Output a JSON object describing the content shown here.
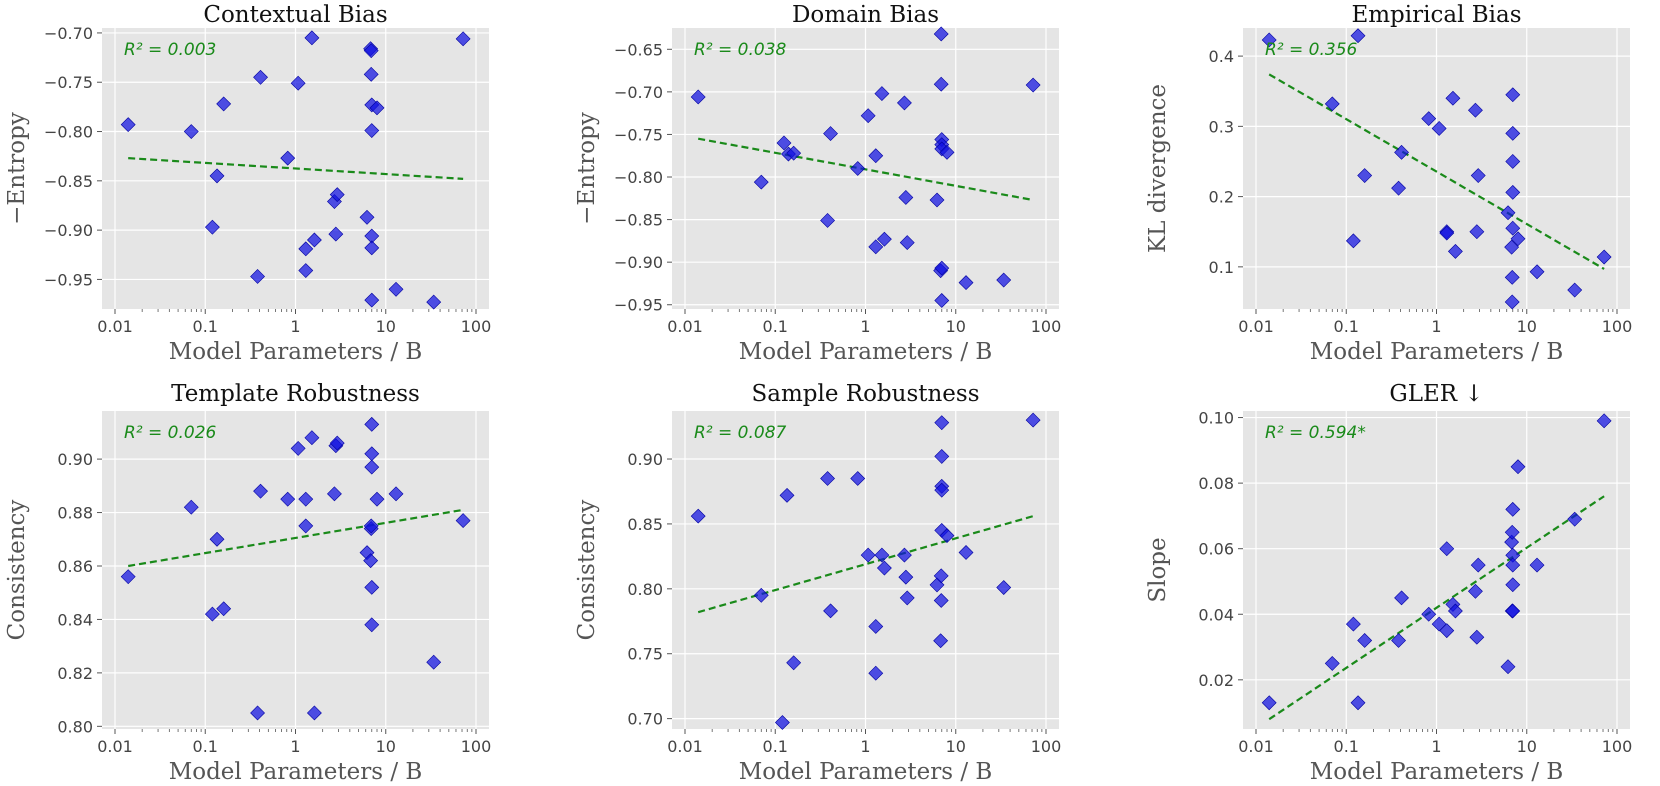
{
  "figure": {
    "x_ticks": [
      "0.01",
      "0.1",
      "1",
      "10",
      "100"
    ],
    "x_tick_values": [
      0.01,
      0.1,
      1,
      10,
      100
    ],
    "colors": {
      "points": "#1010e0",
      "fit": "#1a8a1a",
      "panel_bg": "#e5e5e5",
      "grid": "#ffffff"
    }
  },
  "chart_data": [
    {
      "type": "scatter",
      "title": "Contextual Bias",
      "xlabel": "Model Parameters / B",
      "ylabel": "−Entropy",
      "x_scale": "log",
      "xlim": [
        0.01,
        100
      ],
      "ylim": [
        -0.98,
        -0.695
      ],
      "y_ticks": [
        -0.95,
        -0.9,
        -0.85,
        -0.8,
        -0.75,
        -0.7
      ],
      "y_tick_labels": [
        "−0.95",
        "−0.90",
        "−0.85",
        "−0.80",
        "−0.75",
        "−0.70"
      ],
      "r2_label": "R² = 0.003",
      "fit_line": [
        [
          0.014,
          -0.827
        ],
        [
          72,
          -0.848
        ]
      ],
      "points": [
        [
          0.014,
          -0.793
        ],
        [
          0.07,
          -0.8
        ],
        [
          0.12,
          -0.897
        ],
        [
          0.135,
          -0.845
        ],
        [
          0.16,
          -0.772
        ],
        [
          0.38,
          -0.947
        ],
        [
          0.41,
          -0.745
        ],
        [
          0.82,
          -0.827
        ],
        [
          1.07,
          -0.751
        ],
        [
          1.3,
          -0.919
        ],
        [
          1.3,
          -0.941
        ],
        [
          1.52,
          -0.705
        ],
        [
          1.62,
          -0.91
        ],
        [
          2.7,
          -0.871
        ],
        [
          2.8,
          -0.904
        ],
        [
          2.9,
          -0.864
        ],
        [
          6.2,
          -0.887
        ],
        [
          6.8,
          -0.716
        ],
        [
          6.9,
          -0.718
        ],
        [
          6.9,
          -0.742
        ],
        [
          7.0,
          -0.773
        ],
        [
          7.0,
          -0.799
        ],
        [
          7.0,
          -0.906
        ],
        [
          7.0,
          -0.918
        ],
        [
          7.0,
          -0.971
        ],
        [
          8.0,
          -0.776
        ],
        [
          13,
          -0.96
        ],
        [
          34,
          -0.973
        ],
        [
          72,
          -0.706
        ]
      ]
    },
    {
      "type": "scatter",
      "title": "Domain Bias",
      "xlabel": "Model Parameters / B",
      "ylabel": "−Entropy",
      "x_scale": "log",
      "xlim": [
        0.01,
        100
      ],
      "ylim": [
        -0.955,
        -0.625
      ],
      "y_ticks": [
        -0.95,
        -0.9,
        -0.85,
        -0.8,
        -0.75,
        -0.7,
        -0.65
      ],
      "y_tick_labels": [
        "−0.95",
        "−0.90",
        "−0.85",
        "−0.80",
        "−0.75",
        "−0.70",
        "−0.65"
      ],
      "r2_label": "R² = 0.038",
      "fit_line": [
        [
          0.014,
          -0.755
        ],
        [
          72,
          -0.827
        ]
      ],
      "points": [
        [
          0.014,
          -0.706
        ],
        [
          0.07,
          -0.806
        ],
        [
          0.125,
          -0.76
        ],
        [
          0.14,
          -0.773
        ],
        [
          0.16,
          -0.772
        ],
        [
          0.38,
          -0.851
        ],
        [
          0.41,
          -0.749
        ],
        [
          0.82,
          -0.79
        ],
        [
          1.07,
          -0.728
        ],
        [
          1.3,
          -0.882
        ],
        [
          1.3,
          -0.775
        ],
        [
          1.52,
          -0.702
        ],
        [
          1.62,
          -0.873
        ],
        [
          2.7,
          -0.713
        ],
        [
          2.8,
          -0.824
        ],
        [
          2.9,
          -0.877
        ],
        [
          6.2,
          -0.827
        ],
        [
          6.8,
          -0.91
        ],
        [
          6.9,
          -0.632
        ],
        [
          6.9,
          -0.691
        ],
        [
          7.0,
          -0.756
        ],
        [
          7.0,
          -0.762
        ],
        [
          7.0,
          -0.767
        ],
        [
          7.0,
          -0.907
        ],
        [
          7.0,
          -0.945
        ],
        [
          8.0,
          -0.771
        ],
        [
          13,
          -0.924
        ],
        [
          34,
          -0.921
        ],
        [
          72,
          -0.692
        ]
      ]
    },
    {
      "type": "scatter",
      "title": "Empirical Bias",
      "xlabel": "Model Parameters / B",
      "ylabel": "KL divergence",
      "x_scale": "log",
      "xlim": [
        0.01,
        100
      ],
      "ylim": [
        0.04,
        0.44
      ],
      "y_ticks": [
        0.1,
        0.2,
        0.3,
        0.4
      ],
      "y_tick_labels": [
        "0.1",
        "0.2",
        "0.3",
        "0.4"
      ],
      "r2_label": "R² = 0.356",
      "fit_line": [
        [
          0.014,
          0.374
        ],
        [
          72,
          0.097
        ]
      ],
      "points": [
        [
          0.014,
          0.423
        ],
        [
          0.07,
          0.332
        ],
        [
          0.12,
          0.137
        ],
        [
          0.135,
          0.429
        ],
        [
          0.16,
          0.23
        ],
        [
          0.38,
          0.212
        ],
        [
          0.41,
          0.263
        ],
        [
          0.82,
          0.311
        ],
        [
          1.07,
          0.297
        ],
        [
          1.3,
          0.15
        ],
        [
          1.3,
          0.148
        ],
        [
          1.52,
          0.34
        ],
        [
          1.62,
          0.122
        ],
        [
          2.7,
          0.323
        ],
        [
          2.8,
          0.15
        ],
        [
          2.9,
          0.23
        ],
        [
          6.2,
          0.177
        ],
        [
          6.8,
          0.128
        ],
        [
          6.9,
          0.085
        ],
        [
          6.9,
          0.05
        ],
        [
          7.0,
          0.345
        ],
        [
          7.0,
          0.29
        ],
        [
          7.0,
          0.25
        ],
        [
          7.0,
          0.206
        ],
        [
          7.0,
          0.155
        ],
        [
          8.0,
          0.14
        ],
        [
          13,
          0.093
        ],
        [
          34,
          0.067
        ],
        [
          72,
          0.114
        ]
      ]
    },
    {
      "type": "scatter",
      "title": "Template Robustness",
      "xlabel": "Model Parameters / B",
      "ylabel": "Consistency",
      "x_scale": "log",
      "xlim": [
        0.01,
        100
      ],
      "ylim": [
        0.799,
        0.918
      ],
      "y_ticks": [
        0.8,
        0.82,
        0.84,
        0.86,
        0.88,
        0.9
      ],
      "y_tick_labels": [
        "0.80",
        "0.82",
        "0.84",
        "0.86",
        "0.88",
        "0.90"
      ],
      "r2_label": "R² = 0.026",
      "fit_line": [
        [
          0.014,
          0.86
        ],
        [
          72,
          0.881
        ]
      ],
      "points": [
        [
          0.014,
          0.856
        ],
        [
          0.07,
          0.882
        ],
        [
          0.12,
          0.842
        ],
        [
          0.135,
          0.87
        ],
        [
          0.16,
          0.844
        ],
        [
          0.38,
          0.805
        ],
        [
          0.41,
          0.888
        ],
        [
          0.82,
          0.885
        ],
        [
          1.07,
          0.904
        ],
        [
          1.3,
          0.885
        ],
        [
          1.3,
          0.875
        ],
        [
          1.52,
          0.908
        ],
        [
          1.62,
          0.805
        ],
        [
          2.7,
          0.887
        ],
        [
          2.8,
          0.905
        ],
        [
          2.9,
          0.906
        ],
        [
          6.2,
          0.865
        ],
        [
          6.8,
          0.862
        ],
        [
          6.9,
          0.874
        ],
        [
          6.9,
          0.875
        ],
        [
          7.0,
          0.913
        ],
        [
          7.0,
          0.902
        ],
        [
          7.0,
          0.897
        ],
        [
          7.0,
          0.852
        ],
        [
          7.0,
          0.838
        ],
        [
          8.0,
          0.885
        ],
        [
          13,
          0.887
        ],
        [
          34,
          0.824
        ],
        [
          72,
          0.877
        ]
      ]
    },
    {
      "type": "scatter",
      "title": "Sample Robustness",
      "xlabel": "Model Parameters / B",
      "ylabel": "Consistency",
      "x_scale": "log",
      "xlim": [
        0.01,
        100
      ],
      "ylim": [
        0.692,
        0.937
      ],
      "y_ticks": [
        0.7,
        0.75,
        0.8,
        0.85,
        0.9
      ],
      "y_tick_labels": [
        "0.70",
        "0.75",
        "0.80",
        "0.85",
        "0.90"
      ],
      "r2_label": "R² = 0.087",
      "fit_line": [
        [
          0.014,
          0.782
        ],
        [
          72,
          0.856
        ]
      ],
      "points": [
        [
          0.014,
          0.856
        ],
        [
          0.07,
          0.795
        ],
        [
          0.12,
          0.697
        ],
        [
          0.135,
          0.872
        ],
        [
          0.16,
          0.743
        ],
        [
          0.38,
          0.885
        ],
        [
          0.41,
          0.783
        ],
        [
          0.82,
          0.885
        ],
        [
          1.07,
          0.826
        ],
        [
          1.3,
          0.735
        ],
        [
          1.3,
          0.771
        ],
        [
          1.52,
          0.826
        ],
        [
          1.62,
          0.816
        ],
        [
          2.7,
          0.826
        ],
        [
          2.8,
          0.809
        ],
        [
          2.9,
          0.793
        ],
        [
          6.2,
          0.803
        ],
        [
          6.8,
          0.76
        ],
        [
          6.9,
          0.791
        ],
        [
          6.9,
          0.81
        ],
        [
          7.0,
          0.928
        ],
        [
          7.0,
          0.902
        ],
        [
          7.0,
          0.879
        ],
        [
          7.0,
          0.876
        ],
        [
          7.0,
          0.845
        ],
        [
          8.0,
          0.841
        ],
        [
          13,
          0.828
        ],
        [
          34,
          0.801
        ],
        [
          72,
          0.93
        ]
      ]
    },
    {
      "type": "scatter",
      "title": "GLER ↓",
      "xlabel": "Model Parameters / B",
      "ylabel": "Slope",
      "x_scale": "log",
      "xlim": [
        0.01,
        100
      ],
      "ylim": [
        0.005,
        0.102
      ],
      "y_ticks": [
        0.02,
        0.04,
        0.06,
        0.08,
        0.1
      ],
      "y_tick_labels": [
        "0.02",
        "0.04",
        "0.06",
        "0.08",
        "0.10"
      ],
      "r2_label": "R² = 0.594*",
      "fit_line": [
        [
          0.014,
          0.008
        ],
        [
          72,
          0.076
        ]
      ],
      "points": [
        [
          0.014,
          0.013
        ],
        [
          0.07,
          0.025
        ],
        [
          0.12,
          0.037
        ],
        [
          0.135,
          0.013
        ],
        [
          0.16,
          0.032
        ],
        [
          0.38,
          0.032
        ],
        [
          0.41,
          0.045
        ],
        [
          0.82,
          0.04
        ],
        [
          1.07,
          0.037
        ],
        [
          1.3,
          0.035
        ],
        [
          1.3,
          0.06
        ],
        [
          1.52,
          0.043
        ],
        [
          1.62,
          0.041
        ],
        [
          2.7,
          0.047
        ],
        [
          2.8,
          0.033
        ],
        [
          2.9,
          0.055
        ],
        [
          6.2,
          0.024
        ],
        [
          6.8,
          0.062
        ],
        [
          6.9,
          0.065
        ],
        [
          6.9,
          0.041
        ],
        [
          7.0,
          0.072
        ],
        [
          7.0,
          0.058
        ],
        [
          7.0,
          0.055
        ],
        [
          7.0,
          0.049
        ],
        [
          7.0,
          0.041
        ],
        [
          8.0,
          0.085
        ],
        [
          13,
          0.055
        ],
        [
          34,
          0.069
        ],
        [
          72,
          0.099
        ]
      ]
    }
  ]
}
